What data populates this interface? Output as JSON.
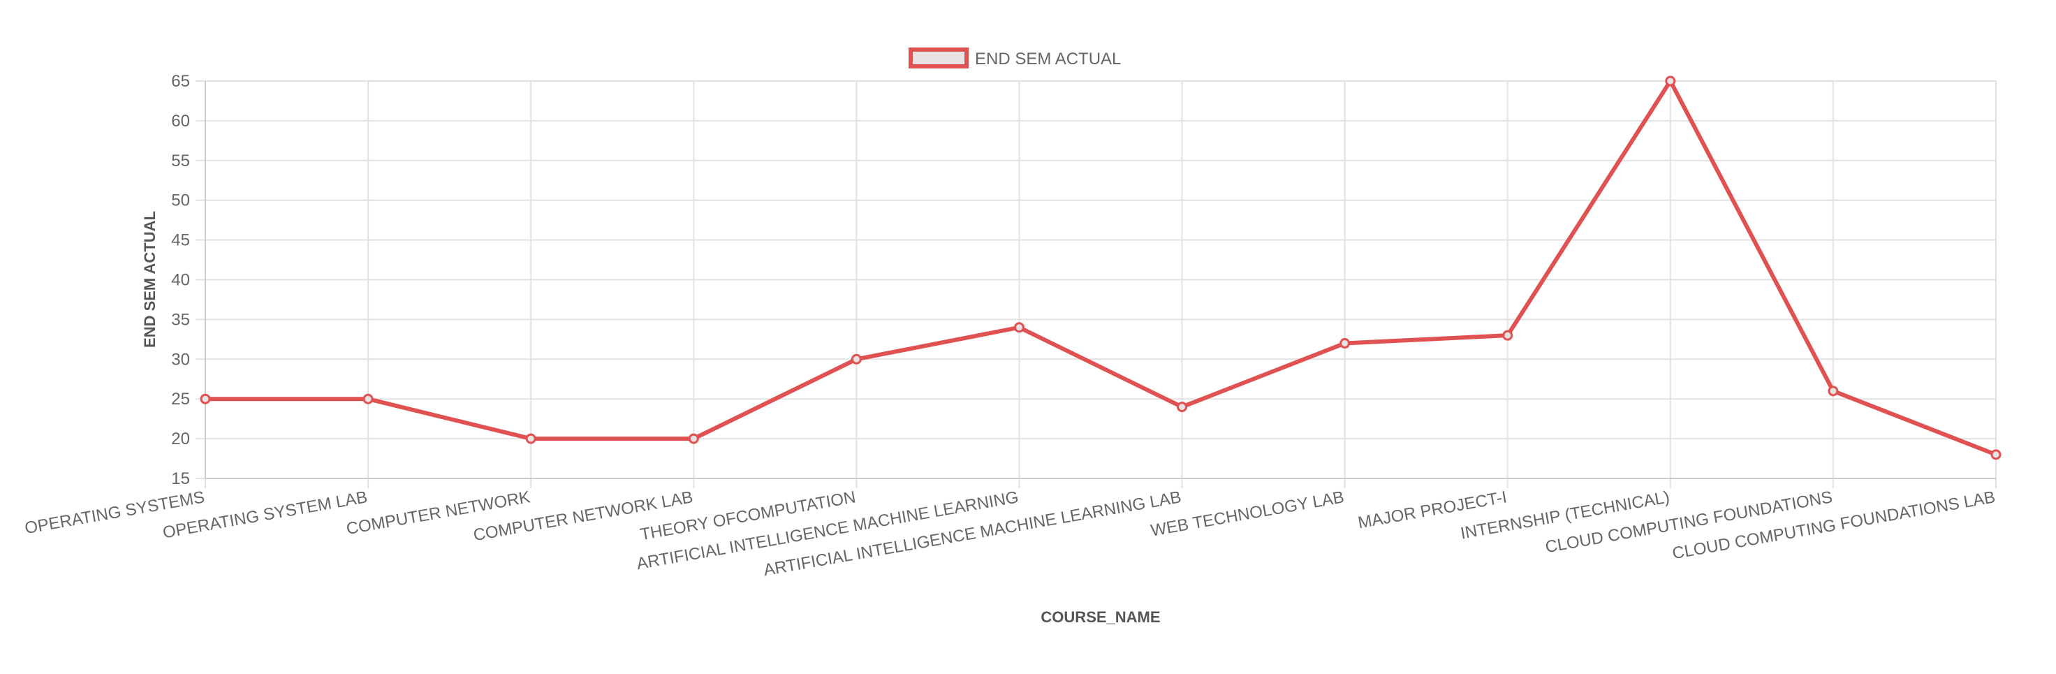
{
  "chart_data": {
    "type": "line",
    "legend": {
      "placement": "top-center",
      "label": "END SEM ACTUAL"
    },
    "xlabel": "COURSE_NAME",
    "ylabel": "END SEM ACTUAL",
    "ylim": [
      15,
      65
    ],
    "yticks": [
      15,
      20,
      25,
      30,
      35,
      40,
      45,
      50,
      55,
      60,
      65
    ],
    "grid": true,
    "categories": [
      "OPERATING SYSTEMS",
      "OPERATING SYSTEM LAB",
      "COMPUTER NETWORK",
      "COMPUTER NETWORK LAB",
      "THEORY OFCOMPUTATION",
      "ARTIFICIAL INTELLIGENCE MACHINE LEARNING",
      "ARTIFICIAL INTELLIGENCE MACHINE LEARNING LAB",
      "WEB TECHNOLOGY LAB",
      "MAJOR PROJECT-I",
      "INTERNSHIP (TECHNICAL)",
      "CLOUD COMPUTING FOUNDATIONS",
      "CLOUD COMPUTING FOUNDATIONS LAB"
    ],
    "series": [
      {
        "name": "END SEM ACTUAL",
        "values": [
          25,
          25,
          20,
          20,
          30,
          34,
          24,
          32,
          33,
          65,
          26,
          18
        ],
        "color": "#e05252",
        "fill": "#e8e3e3"
      }
    ]
  },
  "colors": {
    "grid": "#e2e2e2",
    "tick_text": "#666666",
    "axis_title": "#555555"
  }
}
